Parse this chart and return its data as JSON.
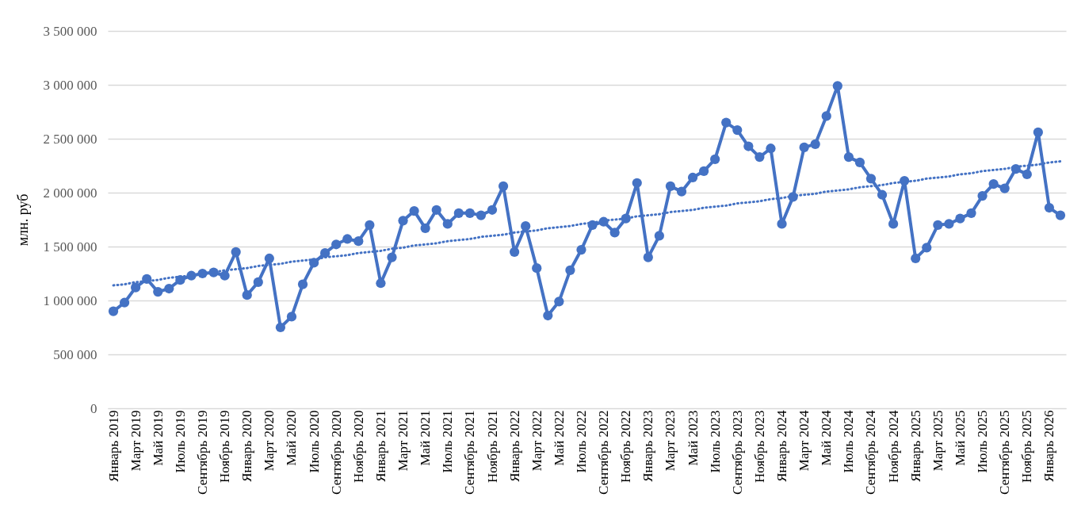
{
  "chart_data": {
    "type": "line",
    "ylabel": "млн. руб",
    "categories": [
      "Январь 2019",
      null,
      "Март 2019",
      null,
      "Май 2019",
      null,
      "Июль 2019",
      null,
      "Сентябрь 2019",
      null,
      "Ноябрь 2019",
      null,
      "Январь 2020",
      null,
      "Март 2020",
      null,
      "Май 2020",
      null,
      "Июль 2020",
      null,
      "Сентябрь 2020",
      null,
      "Ноябрь 2020",
      null,
      "Январь 2021",
      null,
      "Март 2021",
      null,
      "Май 2021",
      null,
      "Июль 2021",
      null,
      "Сентябрь 2021",
      null,
      "Ноябрь 2021",
      null,
      "Январь 2022",
      null,
      "Март 2022",
      null,
      "Май 2022",
      null,
      "Июль 2022",
      null,
      "Сентябрь 2022",
      null,
      "Ноябрь 2022",
      null,
      "Январь 2023",
      null,
      "Март 2023",
      null,
      "Май 2023",
      null,
      "Июль 2023",
      null,
      "Сентябрь 2023",
      null,
      "Ноябрь 2023",
      null,
      "Январь 2024",
      null,
      "Март 2024",
      null,
      "Май 2024",
      null,
      "Июль 2024",
      null,
      "Сентябрь 2024",
      null,
      "Ноябрь 2024",
      null,
      "Январь 2025",
      null,
      "Март 2025",
      null,
      "Май 2025",
      null,
      "Июль 2025",
      null,
      "Сентябрь 2025",
      null,
      "Ноябрь 2025",
      null,
      "Январь 2026",
      null
    ],
    "series": [
      {
        "color": "#4472c4",
        "line_style": "solid",
        "values": [
          900000,
          980000,
          1120000,
          1200000,
          1080000,
          1110000,
          1190000,
          1230000,
          1250000,
          1260000,
          1230000,
          1450000,
          1050000,
          1170000,
          1390000,
          750000,
          850000,
          1150000,
          1350000,
          1440000,
          1520000,
          1570000,
          1550000,
          1700000,
          1160000,
          1400000,
          1740000,
          1830000,
          1670000,
          1840000,
          1710000,
          1810000,
          1810000,
          1790000,
          1840000,
          2060000,
          1450000,
          1690000,
          1300000,
          860000,
          990000,
          1280000,
          1470000,
          1700000,
          1730000,
          1630000,
          1760000,
          2090000,
          1400000,
          1600000,
          2060000,
          2010000,
          2140000,
          2200000,
          2310000,
          2650000,
          2580000,
          2430000,
          2330000,
          2410000,
          1710000,
          1960000,
          2420000,
          2450000,
          2710000,
          2990000,
          2330000,
          2280000,
          2130000,
          1980000,
          1710000,
          2110000,
          1390000,
          1490000,
          1700000,
          1710000,
          1760000,
          1810000,
          1970000,
          2080000,
          2040000,
          2220000,
          2170000,
          2560000,
          1860000,
          1790000
        ]
      },
      {
        "type": "line",
        "color": "#4472c4",
        "line_style": "dotted",
        "marker": "none",
        "values": [
          1140000,
          1150000,
          1170000,
          1180000,
          1190000,
          1210000,
          1220000,
          1230000,
          1250000,
          1260000,
          1280000,
          1290000,
          1300000,
          1320000,
          1330000,
          1340000,
          1360000,
          1370000,
          1380000,
          1400000,
          1410000,
          1420000,
          1440000,
          1450000,
          1460000,
          1480000,
          1490000,
          1510000,
          1520000,
          1530000,
          1550000,
          1560000,
          1570000,
          1590000,
          1600000,
          1610000,
          1630000,
          1640000,
          1650000,
          1670000,
          1680000,
          1690000,
          1710000,
          1720000,
          1740000,
          1750000,
          1760000,
          1780000,
          1790000,
          1800000,
          1820000,
          1830000,
          1840000,
          1860000,
          1870000,
          1880000,
          1900000,
          1910000,
          1920000,
          1940000,
          1950000,
          1970000,
          1980000,
          1990000,
          2010000,
          2020000,
          2030000,
          2050000,
          2060000,
          2070000,
          2090000,
          2100000,
          2110000,
          2130000,
          2140000,
          2150000,
          2170000,
          2180000,
          2200000,
          2210000,
          2220000,
          2240000,
          2250000,
          2260000,
          2280000,
          2290000
        ]
      }
    ],
    "ylim": [
      0,
      3500000
    ],
    "yticks": [
      {
        "value": 0,
        "label": "0"
      },
      {
        "value": 500000,
        "label": "500 000"
      },
      {
        "value": 1000000,
        "label": "1 000 000"
      },
      {
        "value": 1500000,
        "label": "1 500 000"
      },
      {
        "value": 2000000,
        "label": "2 000 000"
      },
      {
        "value": 2500000,
        "label": "2 500 000"
      },
      {
        "value": 3000000,
        "label": "3 000 000"
      },
      {
        "value": 3500000,
        "label": "3 500 000"
      }
    ],
    "grid": "y",
    "marker": "circle"
  }
}
